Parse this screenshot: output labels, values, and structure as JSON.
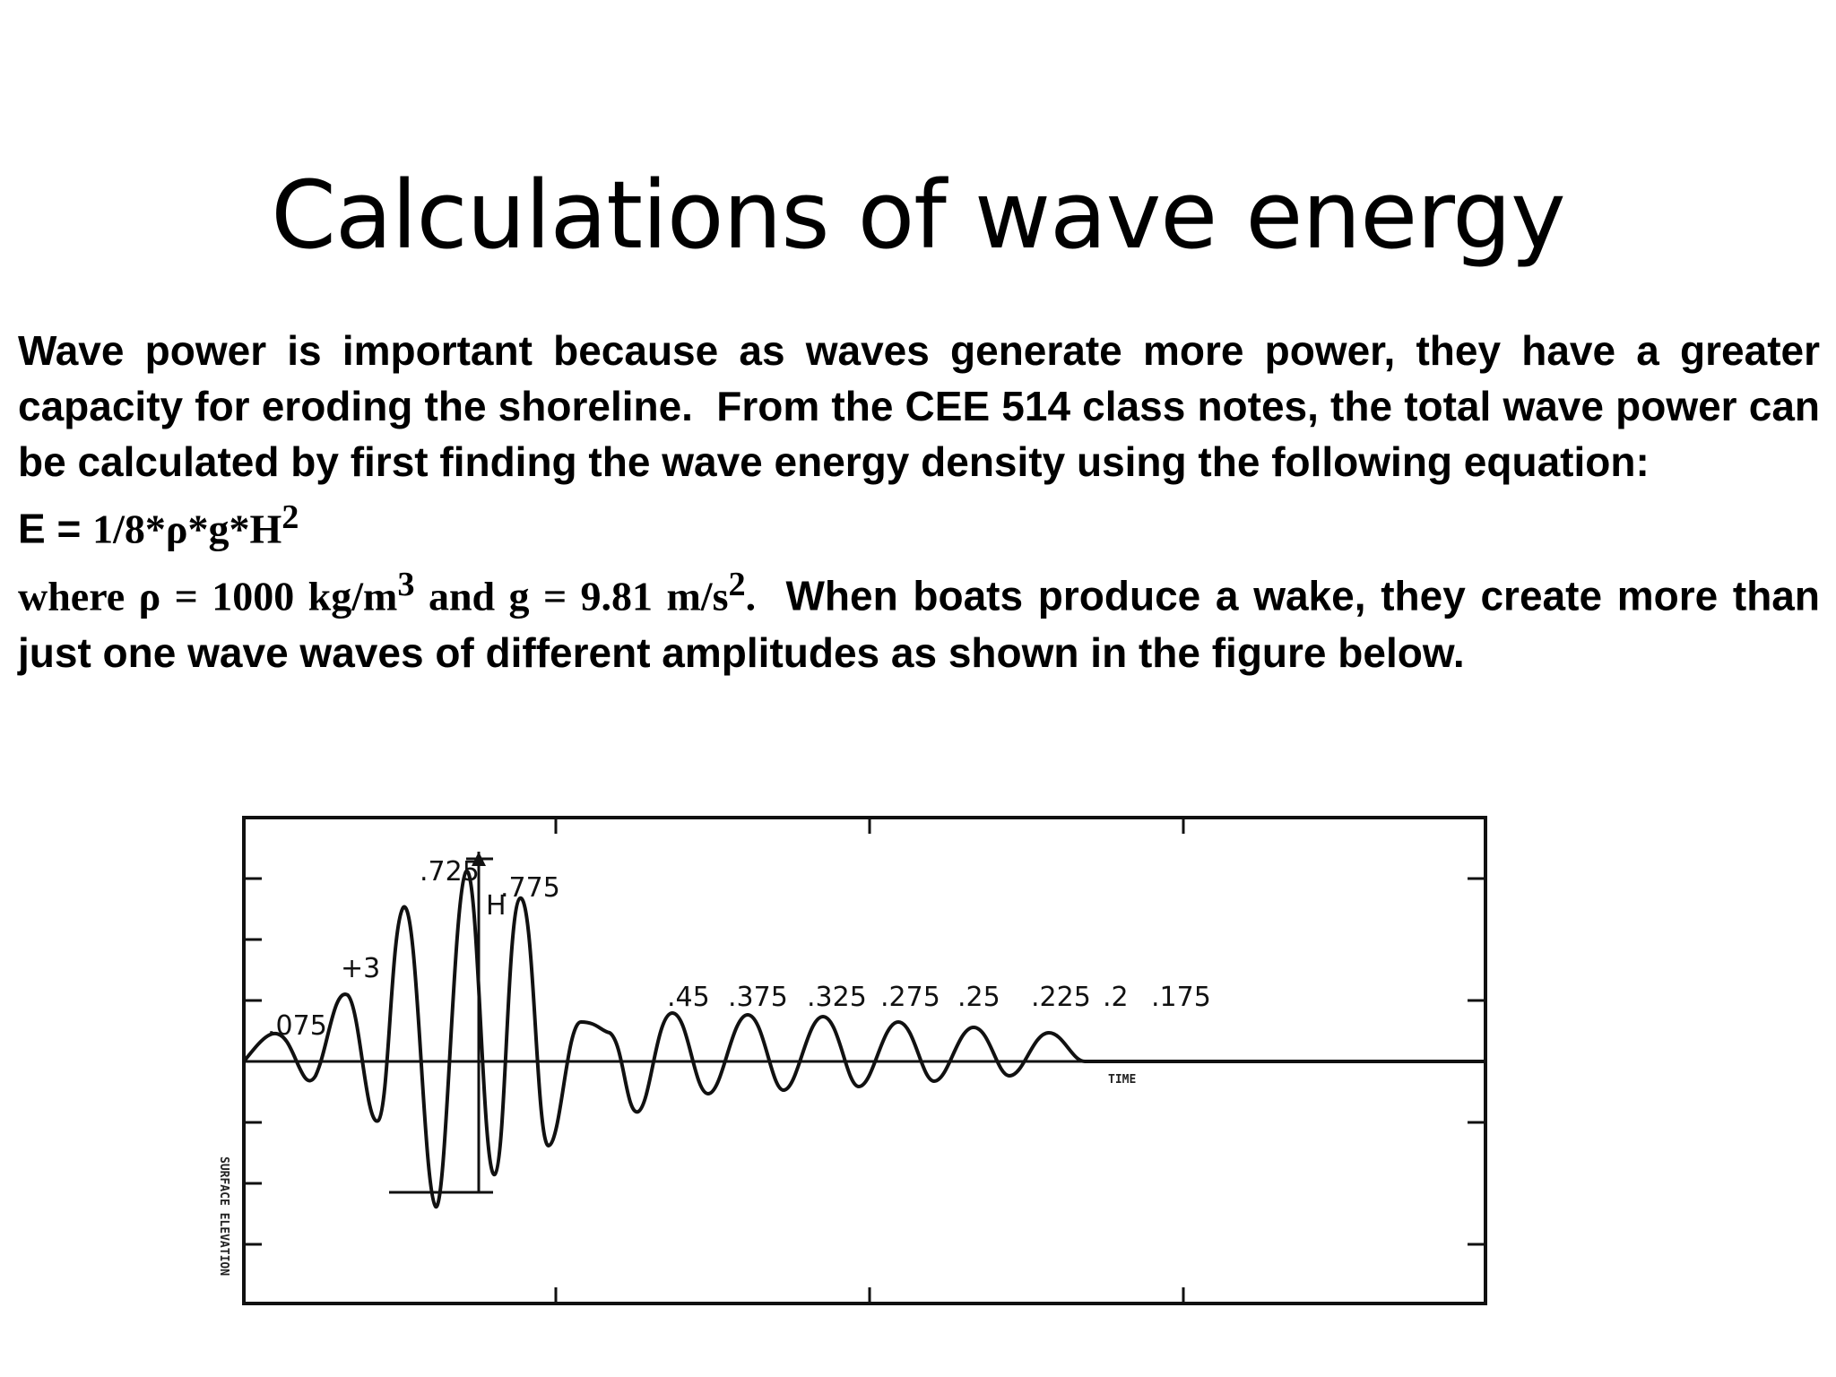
{
  "title": "Calculations of wave energy",
  "paragraph1": "Wave power is important because as waves generate more power, they have a greater capacity for eroding the shoreline.  From the CEE 514 class notes, the total wave power can be calculated by first finding the wave energy density using the following equation:",
  "equation": {
    "lhs": "E = ",
    "rhs": "1/8*ρ*g*H",
    "exp": "2"
  },
  "paragraph2": {
    "where": "where ρ = 1000 kg/m",
    "exp1": "3",
    "and": " and g = 9.81 m/s",
    "exp2": "2",
    "dot": ".",
    "rest": "  When boats produce a wake, they create more than just one wave waves of different amplitudes as shown in the figure below."
  },
  "figure": {
    "y_axis_label": "SURFACE ELEVATION",
    "x_axis_label": "TIME",
    "height_marker": "H",
    "amplitude_labels": [
      ".075",
      "+3",
      ".725",
      ".775",
      ".45",
      ".375",
      ".325",
      ".275",
      ".25",
      ".225",
      ".2",
      ".175"
    ]
  }
}
